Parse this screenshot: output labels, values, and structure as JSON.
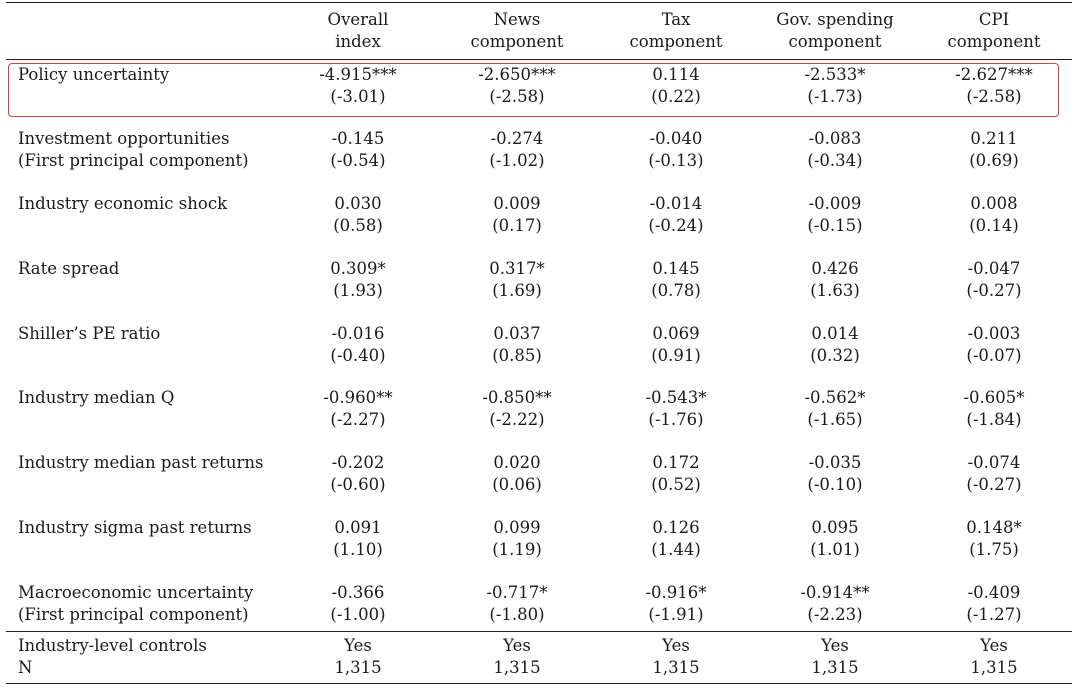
{
  "columns": [
    {
      "line1": "Overall",
      "line2": "index"
    },
    {
      "line1": "News",
      "line2": "component"
    },
    {
      "line1": "Tax",
      "line2": "component"
    },
    {
      "line1": "Gov. spending",
      "line2": "component"
    },
    {
      "line1": "CPI",
      "line2": "component"
    }
  ],
  "rows": [
    {
      "label1": "Policy uncertainty",
      "label2": "",
      "coef": [
        "-4.915***",
        "-2.650***",
        "0.114",
        "-2.533*",
        "-2.627***"
      ],
      "tstat": [
        "(-3.01)",
        "(-2.58)",
        "(0.22)",
        "(-1.73)",
        "(-2.58)"
      ]
    },
    {
      "label1": "Investment opportunities",
      "label2": "(First principal component)",
      "coef": [
        "-0.145",
        "-0.274",
        "-0.040",
        "-0.083",
        "0.211"
      ],
      "tstat": [
        "(-0.54)",
        "(-1.02)",
        "(-0.13)",
        "(-0.34)",
        "(0.69)"
      ]
    },
    {
      "label1": "Industry economic shock",
      "label2": "",
      "coef": [
        "0.030",
        "0.009",
        "-0.014",
        "-0.009",
        "0.008"
      ],
      "tstat": [
        "(0.58)",
        "(0.17)",
        "(-0.24)",
        "(-0.15)",
        "(0.14)"
      ]
    },
    {
      "label1": "Rate spread",
      "label2": "",
      "coef": [
        "0.309*",
        "0.317*",
        "0.145",
        "0.426",
        "-0.047"
      ],
      "tstat": [
        "(1.93)",
        "(1.69)",
        "(0.78)",
        "(1.63)",
        "(-0.27)"
      ]
    },
    {
      "label1": "Shiller’s PE ratio",
      "label2": "",
      "coef": [
        "-0.016",
        "0.037",
        "0.069",
        "0.014",
        "-0.003"
      ],
      "tstat": [
        "(-0.40)",
        "(0.85)",
        "(0.91)",
        "(0.32)",
        "(-0.07)"
      ]
    },
    {
      "label1": "Industry median Q",
      "label2": "",
      "coef": [
        "-0.960**",
        "-0.850**",
        "-0.543*",
        "-0.562*",
        "-0.605*"
      ],
      "tstat": [
        "(-2.27)",
        "(-2.22)",
        "(-1.76)",
        "(-1.65)",
        "(-1.84)"
      ]
    },
    {
      "label1": "Industry median past returns",
      "label2": "",
      "coef": [
        "-0.202",
        "0.020",
        "0.172",
        "-0.035",
        "-0.074"
      ],
      "tstat": [
        "(-0.60)",
        "(0.06)",
        "(0.52)",
        "(-0.10)",
        "(-0.27)"
      ]
    },
    {
      "label1": "Industry sigma past returns",
      "label2": "",
      "coef": [
        "0.091",
        "0.099",
        "0.126",
        "0.095",
        "0.148*"
      ],
      "tstat": [
        "(1.10)",
        "(1.19)",
        "(1.44)",
        "(1.01)",
        "(1.75)"
      ]
    },
    {
      "label1": "Macroeconomic uncertainty",
      "label2": "(First principal component)",
      "coef": [
        "-0.366",
        "-0.717*",
        "-0.916*",
        "-0.914**",
        "-0.409"
      ],
      "tstat": [
        "(-1.00)",
        "(-1.80)",
        "(-1.91)",
        "(-2.23)",
        "(-1.27)"
      ]
    }
  ],
  "footer": {
    "controls_label": "Industry-level controls",
    "controls_values": [
      "Yes",
      "Yes",
      "Yes",
      "Yes",
      "Yes"
    ],
    "n_label": "N",
    "n_values": [
      "1,315",
      "1,315",
      "1,315",
      "1,315",
      "1,315"
    ]
  },
  "highlight_color": "#e33b3b"
}
